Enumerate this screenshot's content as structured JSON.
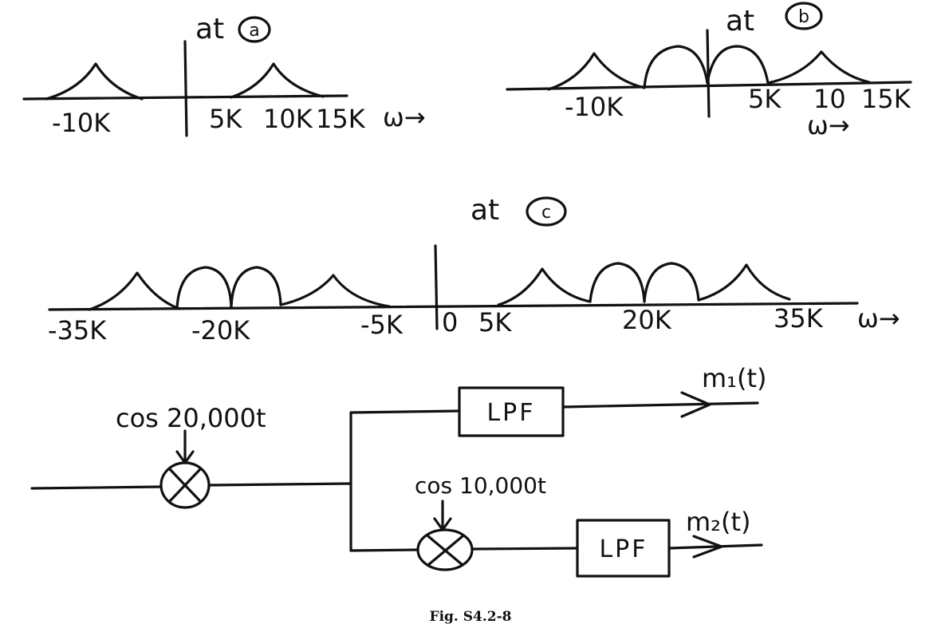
{
  "spectrum_a": {
    "title": "at",
    "marker": "a",
    "ticks": [
      "-10K",
      "5K",
      "10K",
      "15K"
    ],
    "axis_label": "ω→"
  },
  "spectrum_b": {
    "title": "at",
    "marker": "b",
    "ticks": [
      "-10K",
      "5K",
      "10",
      "15K"
    ],
    "axis_label": "ω→"
  },
  "spectrum_c": {
    "title": "at",
    "marker": "c",
    "ticks": [
      "-35K",
      "-20K",
      "-5K",
      "0",
      "5K",
      "20K",
      "35K"
    ],
    "axis_label": "ω→"
  },
  "block_diagram": {
    "carrier_top": "cos 20,000t",
    "carrier_bottom": "cos 10,000t",
    "filter_top": "LPF",
    "filter_bottom": "LPF",
    "output_top": "m₁(t)",
    "output_bottom": "m₂(t)"
  },
  "caption": "Fig. S4.2-8"
}
